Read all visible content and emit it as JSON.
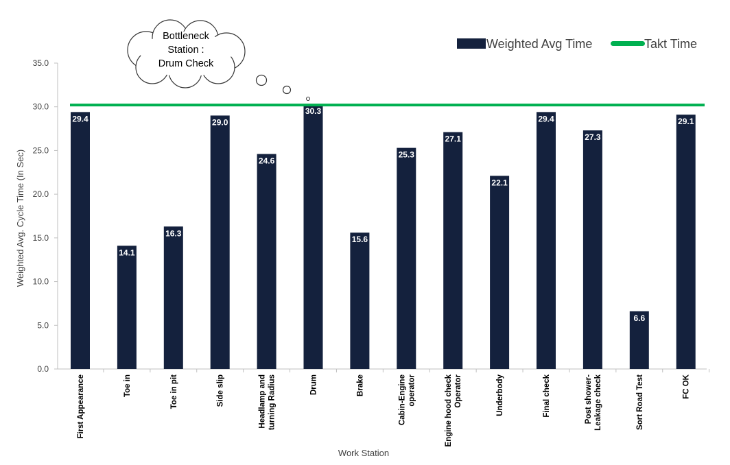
{
  "chart_data": {
    "type": "bar",
    "categories": [
      [
        "First Appearance"
      ],
      [
        "Toe in"
      ],
      [
        "Toe in pit"
      ],
      [
        "Side slip"
      ],
      [
        "Headlamp and",
        "turning Radius"
      ],
      [
        "Drum"
      ],
      [
        "Brake"
      ],
      [
        "Cabin-Engine",
        "operator"
      ],
      [
        "Engine hood check",
        "Operator"
      ],
      [
        "Underbody"
      ],
      [
        "Final check"
      ],
      [
        "Post shower-",
        "Leakage check"
      ],
      [
        "Sort Road Test"
      ],
      [
        "FC OK"
      ]
    ],
    "series": [
      {
        "name": "Weighted Avg Time",
        "color": "#14213d",
        "values": [
          29.4,
          14.1,
          16.3,
          29.0,
          24.6,
          30.3,
          15.6,
          25.3,
          27.1,
          22.1,
          29.4,
          27.3,
          6.6,
          29.1
        ]
      }
    ],
    "value_labels": [
      "29.4",
      "14.1",
      "16.3",
      "29.0",
      "24.6",
      "30.3",
      "15.6",
      "25.3",
      "27.1",
      "22.1",
      "29.4",
      "27.3",
      "6.6",
      "29.1"
    ],
    "reference_line": {
      "name": "Takt Time",
      "color": "#00b050",
      "value": 30.2
    },
    "xlabel": "Work Station",
    "ylabel": "Weighted Avg. Cycle Time (In Sec)",
    "ylim": [
      0,
      35
    ],
    "yticks": [
      "0.0",
      "5.0",
      "10.0",
      "15.0",
      "20.0",
      "25.0",
      "30.0",
      "35.0"
    ],
    "grid": false,
    "legend": "top-right",
    "annotation": {
      "lines": [
        "Bottleneck",
        "Station :",
        "Drum Check"
      ],
      "points_to": "Drum"
    }
  }
}
